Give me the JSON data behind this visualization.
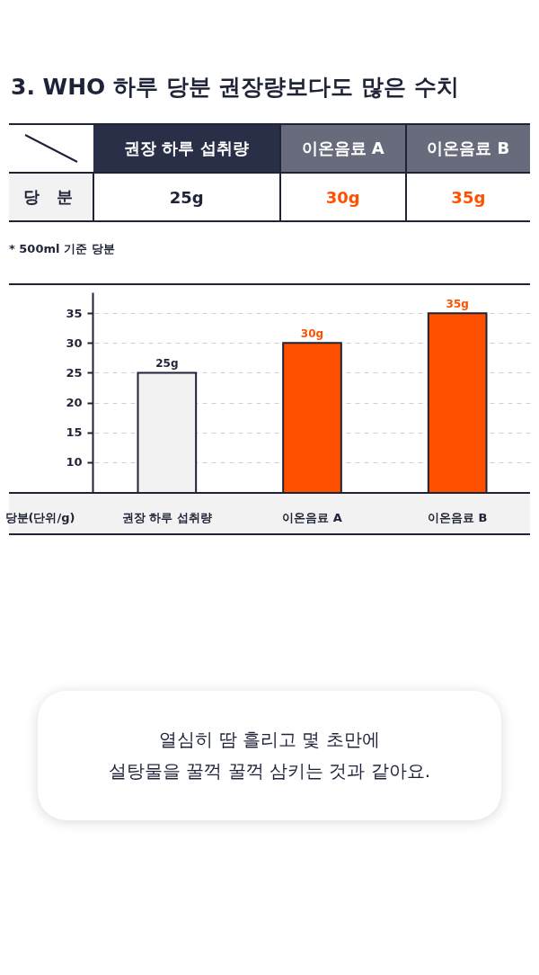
{
  "chart_data": {
    "type": "bar",
    "title": "3. WHO 하루 당분 권장량보다도 많은 수치",
    "xlabel": "당분(단위/g)",
    "categories": [
      "권장 하루 섭취량",
      "이온음료 A",
      "이온음료 B"
    ],
    "values": [
      25,
      30,
      35
    ],
    "colors": [
      "#f2f2f2",
      "#ff5000",
      "#ff5000"
    ],
    "value_labels": [
      "25g",
      "30g",
      "35g"
    ],
    "ylim": [
      5,
      38.5
    ],
    "yticks": [
      10,
      15,
      20,
      25,
      30,
      35
    ],
    "grid": "y",
    "annotations": [
      "당 분",
      "* 500ml 기준 당분",
      "열심히 땀 흘리고 몇 초만에\n설탕물을 꿀꺽 꿀꺽 삼키는 것과 같아요."
    ]
  }
}
